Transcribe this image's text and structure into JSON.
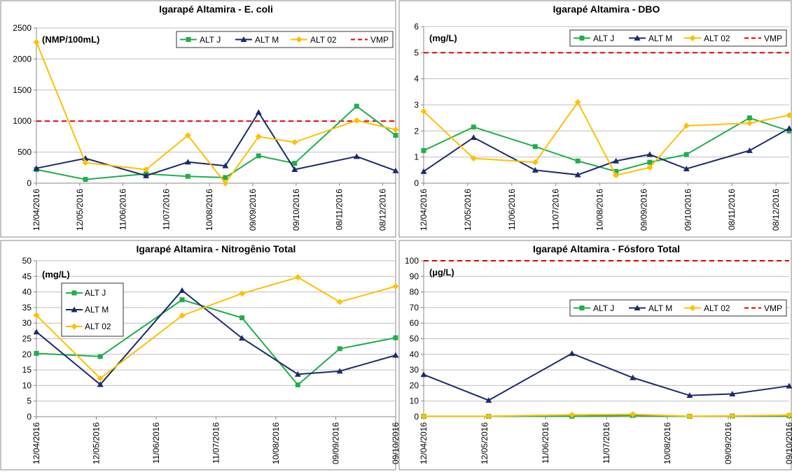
{
  "chart_data": [
    {
      "type": "line",
      "title": "Igarapé Altamira - E. coli",
      "unit": "(NMP/100mL)",
      "x": [
        "2016-04-12",
        "2016-05-16",
        "2016-06-27",
        "2016-07-26",
        "2016-08-21",
        "2016-09-13",
        "2016-10-08",
        "2016-11-20",
        "2016-12-17"
      ],
      "series": [
        {
          "name": "ALT J",
          "color": "#1fae4b",
          "marker": "square",
          "values": [
            220,
            60,
            150,
            110,
            90,
            440,
            320,
            1240,
            770
          ]
        },
        {
          "name": "ALT M",
          "color": "#1b2a6b",
          "marker": "triangle",
          "values": [
            240,
            400,
            120,
            340,
            280,
            1140,
            220,
            430,
            200
          ]
        },
        {
          "name": "ALT 02",
          "color": "#ffc000",
          "marker": "diamond",
          "values": [
            2270,
            330,
            220,
            770,
            0,
            750,
            660,
            1010,
            860
          ]
        }
      ],
      "hlines": [
        {
          "name": "VMP",
          "value": 1000,
          "color": "#e00000"
        }
      ],
      "ylim": [
        0,
        2500
      ],
      "yticks": [
        0,
        500,
        1000,
        1500,
        2000,
        2500
      ],
      "xlim": [
        "2016-04-12",
        "2016-12-17"
      ],
      "xticks": [
        {
          "value": "2016-04-12",
          "label": "12/04/2016"
        },
        {
          "value": "2016-05-12",
          "label": "12/05/2016"
        },
        {
          "value": "2016-06-11",
          "label": "11/06/2016"
        },
        {
          "value": "2016-07-11",
          "label": "11/07/2016"
        },
        {
          "value": "2016-08-10",
          "label": "10/08/2016"
        },
        {
          "value": "2016-09-09",
          "label": "09/09/2016"
        },
        {
          "value": "2016-10-09",
          "label": "09/10/2016"
        },
        {
          "value": "2016-11-08",
          "label": "08/11/2016"
        },
        {
          "value": "2016-12-08",
          "label": "08/12/2016"
        }
      ],
      "grid": true,
      "legend": "top-right"
    },
    {
      "type": "line",
      "title": "Igarapé Altamira - DBO",
      "unit": "(mg/L)",
      "x": [
        "2016-04-12",
        "2016-05-16",
        "2016-06-27",
        "2016-07-26",
        "2016-08-21",
        "2016-09-13",
        "2016-10-08",
        "2016-11-20",
        "2016-12-17"
      ],
      "series": [
        {
          "name": "ALT J",
          "color": "#1fae4b",
          "marker": "square",
          "values": [
            1.25,
            2.15,
            1.4,
            0.85,
            0.45,
            0.8,
            1.1,
            2.5,
            2.0
          ]
        },
        {
          "name": "ALT M",
          "color": "#1b2a6b",
          "marker": "triangle",
          "values": [
            0.45,
            1.75,
            0.5,
            0.32,
            0.85,
            1.1,
            0.55,
            1.25,
            2.1
          ]
        },
        {
          "name": "ALT 02",
          "color": "#ffc000",
          "marker": "diamond",
          "values": [
            2.75,
            0.95,
            0.8,
            3.1,
            0.3,
            0.6,
            2.2,
            2.3,
            2.6
          ]
        }
      ],
      "hlines": [
        {
          "name": "VMP",
          "value": 5,
          "color": "#e00000"
        }
      ],
      "ylim": [
        0,
        6
      ],
      "yticks": [
        0,
        1,
        2,
        3,
        4,
        5,
        6
      ],
      "xlim": [
        "2016-04-12",
        "2016-12-17"
      ],
      "xticks": [
        {
          "value": "2016-04-12",
          "label": "12/04/2016"
        },
        {
          "value": "2016-05-12",
          "label": "12/05/2016"
        },
        {
          "value": "2016-06-11",
          "label": "11/06/2016"
        },
        {
          "value": "2016-07-11",
          "label": "11/07/2016"
        },
        {
          "value": "2016-08-10",
          "label": "10/08/2016"
        },
        {
          "value": "2016-09-09",
          "label": "09/09/2016"
        },
        {
          "value": "2016-10-09",
          "label": "09/10/2016"
        },
        {
          "value": "2016-11-08",
          "label": "08/11/2016"
        },
        {
          "value": "2016-12-08",
          "label": "08/12/2016"
        }
      ],
      "grid": true,
      "legend": "top-right"
    },
    {
      "type": "line",
      "title": "Igarapé Altamira - Nitrogênio Total",
      "unit": "(mg/L)",
      "x": [
        "2016-04-12",
        "2016-05-14",
        "2016-06-24",
        "2016-07-24",
        "2016-08-21",
        "2016-09-11",
        "2016-10-09"
      ],
      "series": [
        {
          "name": "ALT J",
          "color": "#1fae4b",
          "marker": "square",
          "values": [
            20.3,
            19.3,
            37.5,
            31.7,
            10.2,
            21.8,
            25.3
          ]
        },
        {
          "name": "ALT M",
          "color": "#1b2a6b",
          "marker": "triangle",
          "values": [
            27.2,
            10.3,
            40.5,
            25.2,
            13.6,
            14.6,
            19.7
          ]
        },
        {
          "name": "ALT 02",
          "color": "#ffc000",
          "marker": "diamond",
          "values": [
            32.5,
            12.3,
            32.4,
            39.5,
            44.7,
            36.8,
            41.8
          ]
        }
      ],
      "hlines": [],
      "ylim": [
        0,
        50
      ],
      "yticks": [
        0,
        5,
        10,
        15,
        20,
        25,
        30,
        35,
        40,
        45,
        50
      ],
      "xlim": [
        "2016-04-12",
        "2016-10-09"
      ],
      "xticks": [
        {
          "value": "2016-04-12",
          "label": "12/04/2016"
        },
        {
          "value": "2016-05-12",
          "label": "12/05/2016"
        },
        {
          "value": "2016-06-11",
          "label": "11/06/2016"
        },
        {
          "value": "2016-07-11",
          "label": "11/07/2016"
        },
        {
          "value": "2016-08-10",
          "label": "10/08/2016"
        },
        {
          "value": "2016-09-09",
          "label": "09/09/2016"
        },
        {
          "value": "2016-10-09",
          "label": "09/10/2016"
        }
      ],
      "grid": true,
      "legend": "top-left"
    },
    {
      "type": "line",
      "title": "Igarapé Altamira - Fósforo Total",
      "unit": "(µg/L)",
      "x": [
        "2016-04-12",
        "2016-05-14",
        "2016-06-24",
        "2016-07-24",
        "2016-08-21",
        "2016-09-11",
        "2016-10-09"
      ],
      "series": [
        {
          "name": "ALT J",
          "color": "#1fae4b",
          "marker": "square",
          "values": [
            0.2,
            0.2,
            0.3,
            0.8,
            0.2,
            0.4,
            0.6
          ]
        },
        {
          "name": "ALT M",
          "color": "#1b2a6b",
          "marker": "triangle",
          "values": [
            27,
            10.5,
            40.5,
            25,
            13.6,
            14.6,
            19.7
          ]
        },
        {
          "name": "ALT 02",
          "color": "#ffc000",
          "marker": "diamond",
          "values": [
            0.3,
            0.3,
            1.2,
            1.5,
            0.3,
            0.5,
            1.0
          ]
        }
      ],
      "hlines": [
        {
          "name": "VMP",
          "value": 100,
          "color": "#e00000"
        }
      ],
      "ylim": [
        0,
        100
      ],
      "yticks": [
        0,
        10,
        20,
        30,
        40,
        50,
        60,
        70,
        80,
        90,
        100
      ],
      "xlim": [
        "2016-04-12",
        "2016-10-09"
      ],
      "xticks": [
        {
          "value": "2016-04-12",
          "label": "12/04/2016"
        },
        {
          "value": "2016-05-12",
          "label": "12/05/2016"
        },
        {
          "value": "2016-06-11",
          "label": "11/06/2016"
        },
        {
          "value": "2016-07-11",
          "label": "11/07/2016"
        },
        {
          "value": "2016-08-10",
          "label": "10/08/2016"
        },
        {
          "value": "2016-09-09",
          "label": "09/09/2016"
        },
        {
          "value": "2016-10-09",
          "label": "09/10/2016"
        }
      ],
      "grid": true,
      "legend": "right"
    }
  ]
}
